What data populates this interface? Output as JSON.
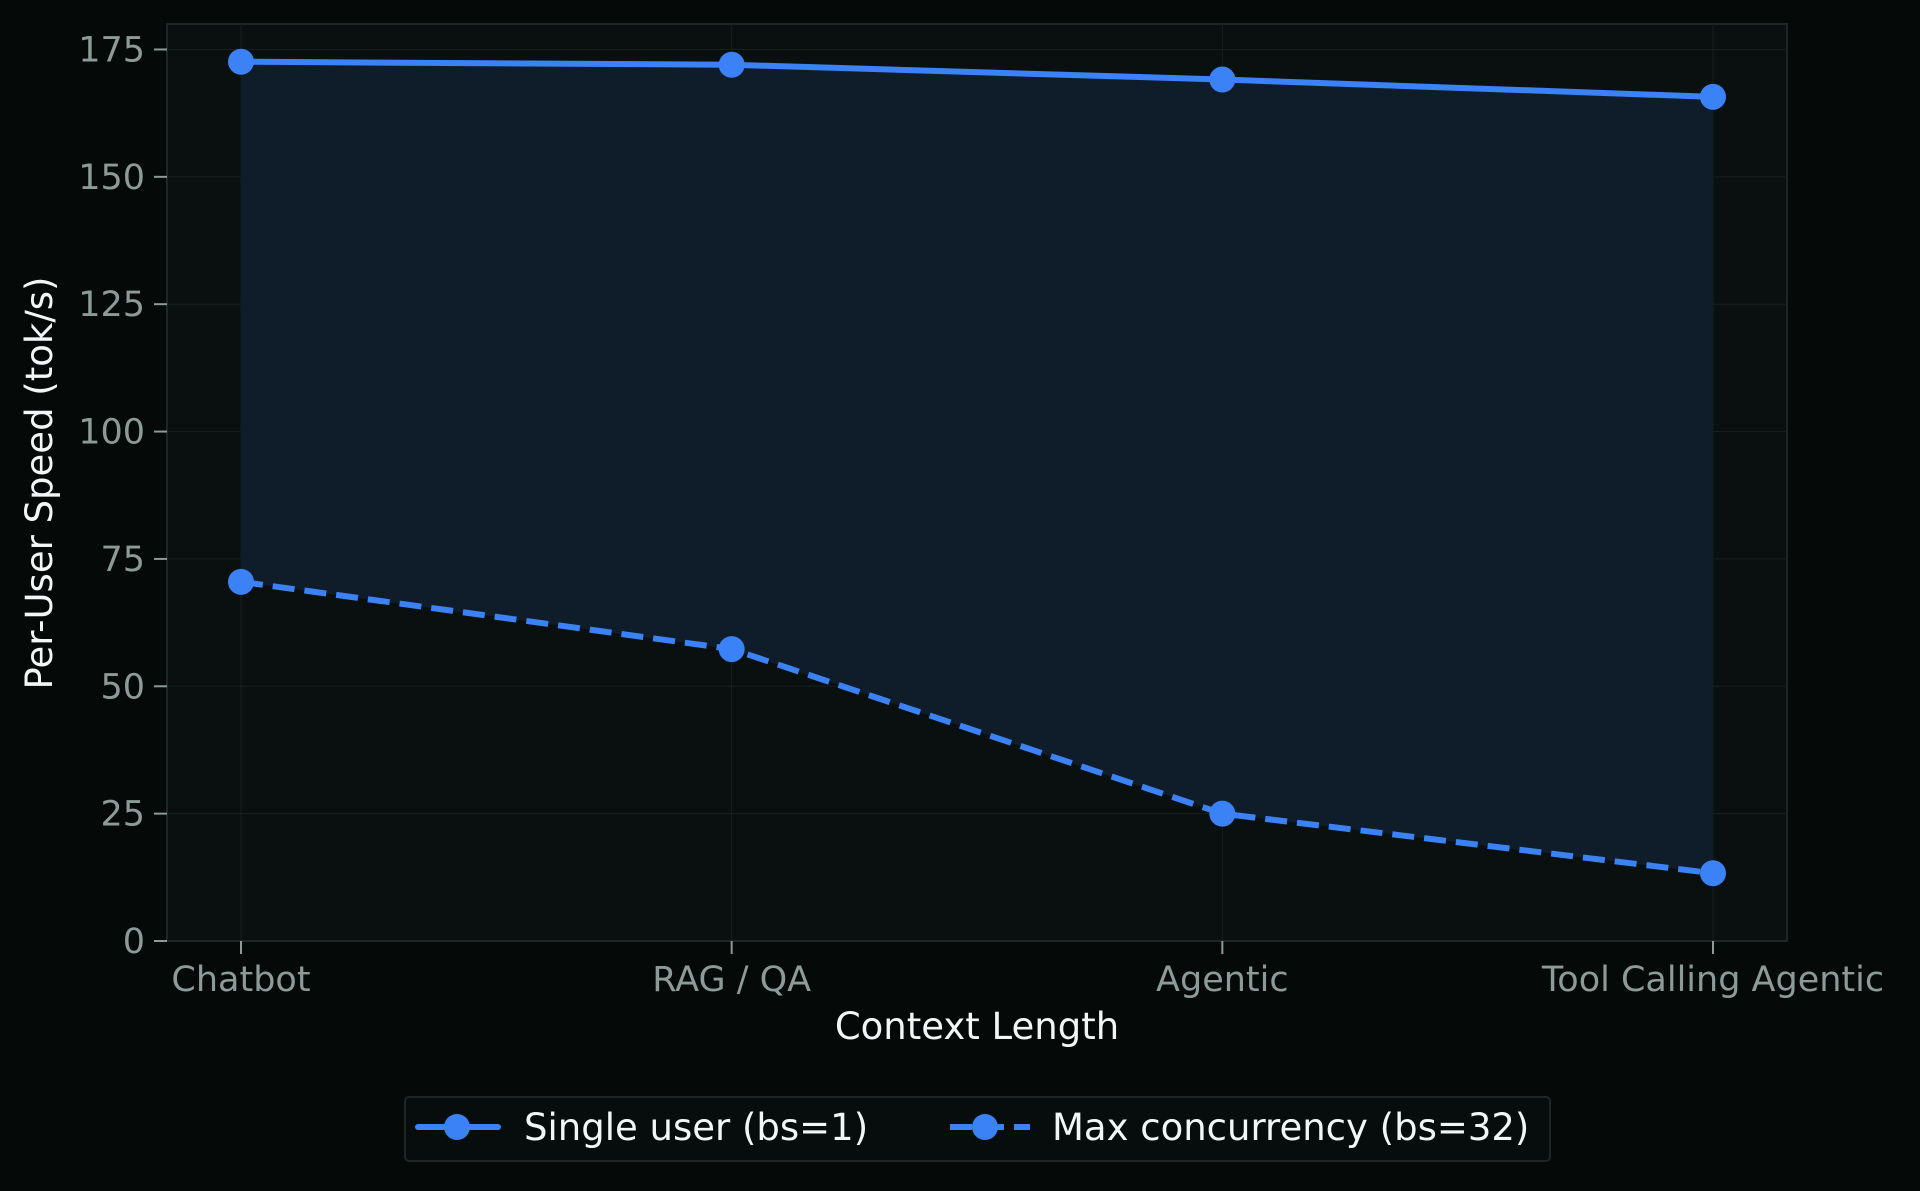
{
  "colors": {
    "page_background": "#050908",
    "plot_background": "#0a100f",
    "fill_between": "#0f1d2a",
    "line": "#3b82f6",
    "tick_text": "#8c9a98",
    "label_text": "#f3f6f6",
    "spine": "#1d2624",
    "grid": "#16201e"
  },
  "chart_data": {
    "type": "line",
    "title": "",
    "xlabel": "Context Length",
    "ylabel": "Per-User Speed (tok/s)",
    "categories": [
      "Chatbot",
      "RAG / QA",
      "Agentic",
      "Tool Calling Agentic"
    ],
    "ylim": [
      0,
      180
    ],
    "yticks": [
      0,
      25,
      50,
      75,
      100,
      125,
      150,
      175
    ],
    "grid": true,
    "legend_position": "bottom-center, below plot",
    "fill_between_series": true,
    "series": [
      {
        "name": "Single user (bs=1)",
        "line_style": "solid",
        "marker": "circle",
        "color": "#3b82f6",
        "values": [
          172.6,
          172.0,
          169.1,
          165.7
        ]
      },
      {
        "name": "Max concurrency (bs=32)",
        "line_style": "dashed",
        "marker": "circle",
        "color": "#3b82f6",
        "values": [
          70.5,
          57.3,
          25.0,
          13.3
        ]
      }
    ]
  }
}
